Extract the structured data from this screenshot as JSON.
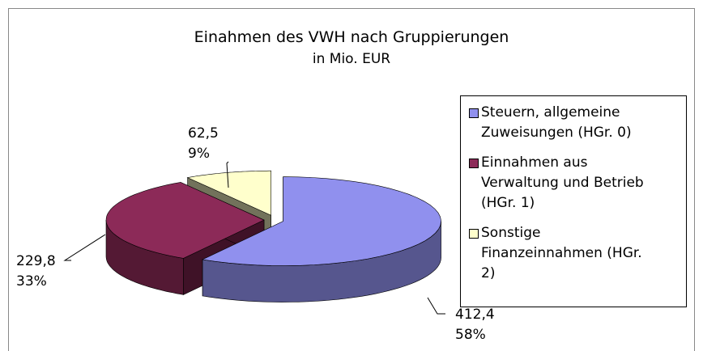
{
  "chart_data": {
    "type": "pie",
    "title": "Einahmen des VWH nach Gruppierungen",
    "subtitle": "in Mio. EUR",
    "categories": [
      "Steuern, allgemeine Zuweisungen (HGr. 0)",
      "Einnahmen aus Verwaltung und Betrieb (HGr. 1)",
      "Sonstige Finanzeinnahmen (HGr. 2)"
    ],
    "values": [
      412.4,
      229.8,
      62.5
    ],
    "value_labels": [
      "412,4",
      "229,8",
      "62,5"
    ],
    "percent_labels": [
      "58%",
      "33%",
      "9%"
    ],
    "colors": [
      "#9090ee",
      "#8c2a58",
      "#ffffcc"
    ],
    "legend": "right"
  }
}
